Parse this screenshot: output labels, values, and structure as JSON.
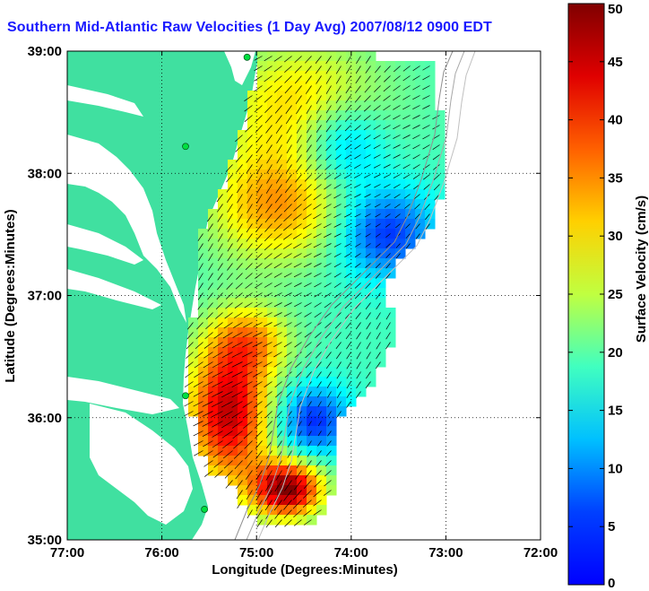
{
  "chart_data": {
    "type": "heatmap",
    "title": "Southern Mid-Atlantic Raw Velocities (1 Day Avg) 2007/08/12 0900 EDT",
    "xlabel": "Longitude (Degrees:Minutes)",
    "ylabel": "Latitude (Degrees:Minutes)",
    "x_ticks": [
      "77:00",
      "76:00",
      "75:00",
      "74:00",
      "73:00",
      "72:00"
    ],
    "y_ticks": [
      "39:00",
      "38:00",
      "37:00",
      "36:00",
      "35:00"
    ],
    "xlim": [
      -77,
      -72
    ],
    "ylim": [
      35,
      39
    ],
    "grid": true,
    "colorbar": {
      "label": "Surface Velocity (cm/s)",
      "min": 0,
      "max": 50,
      "ticks": [
        "0",
        "5",
        "10",
        "15",
        "20",
        "25",
        "30",
        "35",
        "40",
        "45",
        "50"
      ],
      "colormap": "jet"
    },
    "colors": {
      "land": "#40e0a0",
      "title": "#1a1aff",
      "stations": "#00e040"
    },
    "station_markers": [
      {
        "lon": -75.1,
        "lat": 38.95
      },
      {
        "lon": -75.75,
        "lat": 38.22
      },
      {
        "lon": -75.75,
        "lat": 36.18
      },
      {
        "lon": -75.55,
        "lat": 35.25
      }
    ]
  }
}
